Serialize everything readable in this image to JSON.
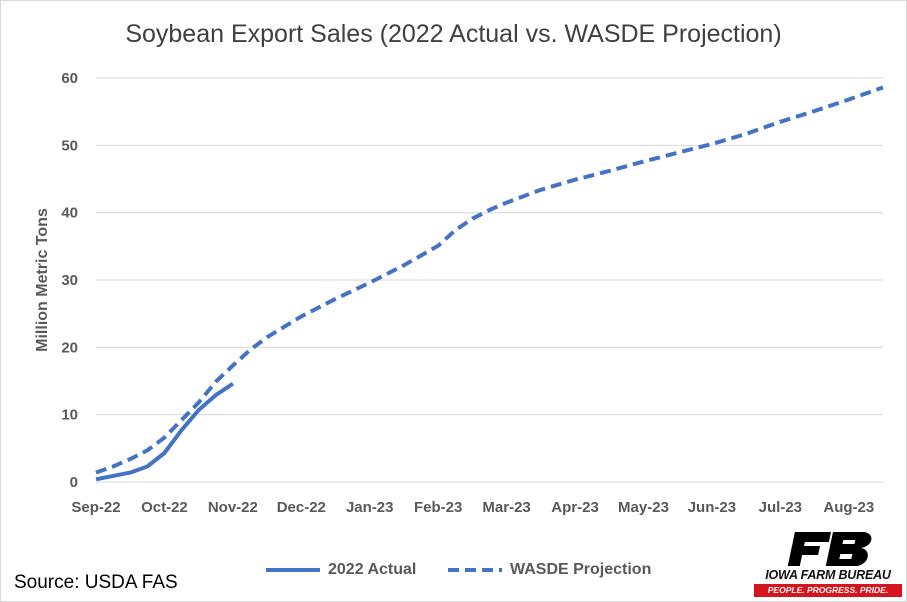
{
  "chart_data": {
    "type": "line",
    "title": "Soybean Export Sales (2022 Actual vs. WASDE Projection)",
    "ylabel": "Million Metric Tons",
    "xlabel": "",
    "ylim": [
      0,
      60
    ],
    "yticks": [
      "0",
      "10",
      "20",
      "30",
      "40",
      "50",
      "60"
    ],
    "categories": [
      "Sep-22",
      "Oct-22",
      "Nov-22",
      "Dec-22",
      "Jan-23",
      "Feb-23",
      "Mar-23",
      "Apr-23",
      "May-23",
      "Jun-23",
      "Jul-23",
      "Aug-23"
    ],
    "grid": true,
    "legend_position": "bottom",
    "series": [
      {
        "name": "2022 Actual",
        "style": "solid",
        "color": "#4472c4",
        "x": [
          0,
          0.25,
          0.5,
          0.75,
          1.0,
          1.25,
          1.5,
          1.75,
          2.0
        ],
        "values": [
          0.4,
          0.9,
          1.4,
          2.3,
          4.3,
          7.7,
          10.7,
          12.9,
          14.6
        ]
      },
      {
        "name": "WASDE Projection",
        "style": "dashed",
        "color": "#4472c4",
        "x": [
          0,
          0.25,
          0.5,
          0.75,
          1.0,
          1.25,
          1.5,
          1.75,
          2.0,
          2.25,
          2.5,
          3.0,
          3.5,
          4.0,
          4.5,
          5.0,
          5.25,
          5.5,
          5.75,
          6.0,
          6.5,
          7.0,
          7.5,
          8.0,
          8.5,
          9.0,
          9.5,
          10.0,
          10.5,
          11.0,
          11.5
        ],
        "values": [
          1.4,
          2.3,
          3.4,
          4.7,
          6.6,
          9.2,
          11.8,
          14.9,
          17.3,
          19.6,
          21.5,
          24.6,
          27.2,
          29.6,
          32.2,
          35.1,
          37.4,
          39.1,
          40.4,
          41.5,
          43.4,
          44.9,
          46.2,
          47.6,
          48.9,
          50.2,
          51.7,
          53.5,
          55.1,
          56.8,
          58.6
        ]
      }
    ]
  },
  "source": "Source: USDA FAS",
  "logo": {
    "name": "IOWA FARM BUREAU",
    "tagline": "PEOPLE. PROGRESS. PRIDE.",
    "colors": {
      "mark": "#000000",
      "accent": "#d6141e"
    }
  }
}
